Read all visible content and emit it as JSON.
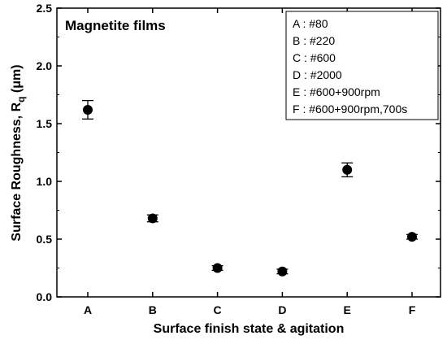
{
  "chart_data": {
    "type": "scatter",
    "title": "Magnetite films",
    "xlabel": "Surface finish state & agitation",
    "ylabel": {
      "main": "Surface Roughness, R",
      "sub": "q",
      "unit": " (μm)"
    },
    "ylim": [
      0.0,
      2.5
    ],
    "yticks": [
      "0.0",
      "0.5",
      "1.0",
      "1.5",
      "2.0",
      "2.5"
    ],
    "categories": [
      "A",
      "B",
      "C",
      "D",
      "E",
      "F"
    ],
    "values": [
      1.62,
      0.68,
      0.25,
      0.22,
      1.1,
      0.52
    ],
    "errors": [
      0.08,
      0.03,
      0.02,
      0.02,
      0.06,
      0.02
    ],
    "marker": "filled-circle",
    "color": "#000000",
    "grid": false,
    "legend_position": "top-right",
    "legend": [
      "A : #80",
      "B : #220",
      "C : #600",
      "D : #2000",
      "E : #600+900rpm",
      "F : #600+900rpm,700s"
    ]
  }
}
